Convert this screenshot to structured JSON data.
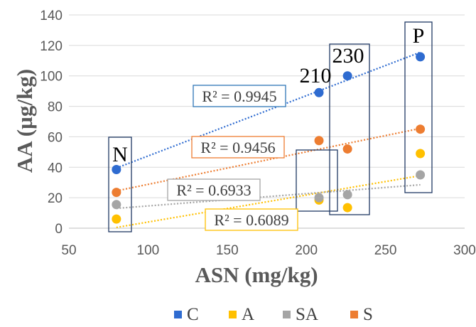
{
  "chart_data": {
    "type": "scatter",
    "title": "",
    "xlabel": "ASN (mg/kg)",
    "ylabel": "AA (µg/kg)",
    "xlim": [
      50,
      300
    ],
    "ylim": [
      0,
      140
    ],
    "x_ticks": [
      50,
      100,
      150,
      200,
      250,
      300
    ],
    "y_ticks": [
      0,
      20,
      40,
      60,
      80,
      100,
      120,
      140
    ],
    "grid": "horizontal",
    "legend_position": "bottom",
    "x": [
      80,
      208,
      226,
      272
    ],
    "series": [
      {
        "name": "C",
        "color": "#2E6BD0",
        "values": [
          38.5,
          89,
          100,
          112.5
        ],
        "trendline": {
          "from": [
            80,
            39.5
          ],
          "to": [
            272,
            115.5
          ],
          "r2_label": "R² = 0.9945",
          "box_color": "#2E75B6"
        }
      },
      {
        "name": "A",
        "color": "#FFC000",
        "values": [
          6,
          18.5,
          13.5,
          49
        ],
        "trendline": {
          "from": [
            80,
            0.5
          ],
          "to": [
            272,
            34.5
          ],
          "r2_label": "R² = 0.6089",
          "box_color": "#FFC000"
        }
      },
      {
        "name": "SA",
        "color": "#A5A5A5",
        "values": [
          15.5,
          20,
          22,
          35
        ],
        "trendline": {
          "from": [
            80,
            13
          ],
          "to": [
            272,
            28.5
          ],
          "r2_label": "R² = 0.6933",
          "box_color": "#A5A5A5"
        }
      },
      {
        "name": "S",
        "color": "#ED7D31",
        "values": [
          23.5,
          57.5,
          52,
          65
        ],
        "trendline": {
          "from": [
            80,
            24.5
          ],
          "to": [
            272,
            65.5
          ],
          "r2_label": "R² = 0.9456",
          "box_color": "#ED7D31"
        }
      }
    ],
    "group_labels": [
      "N",
      "210",
      "230",
      "P"
    ],
    "group_box_color": "#1F3864"
  }
}
